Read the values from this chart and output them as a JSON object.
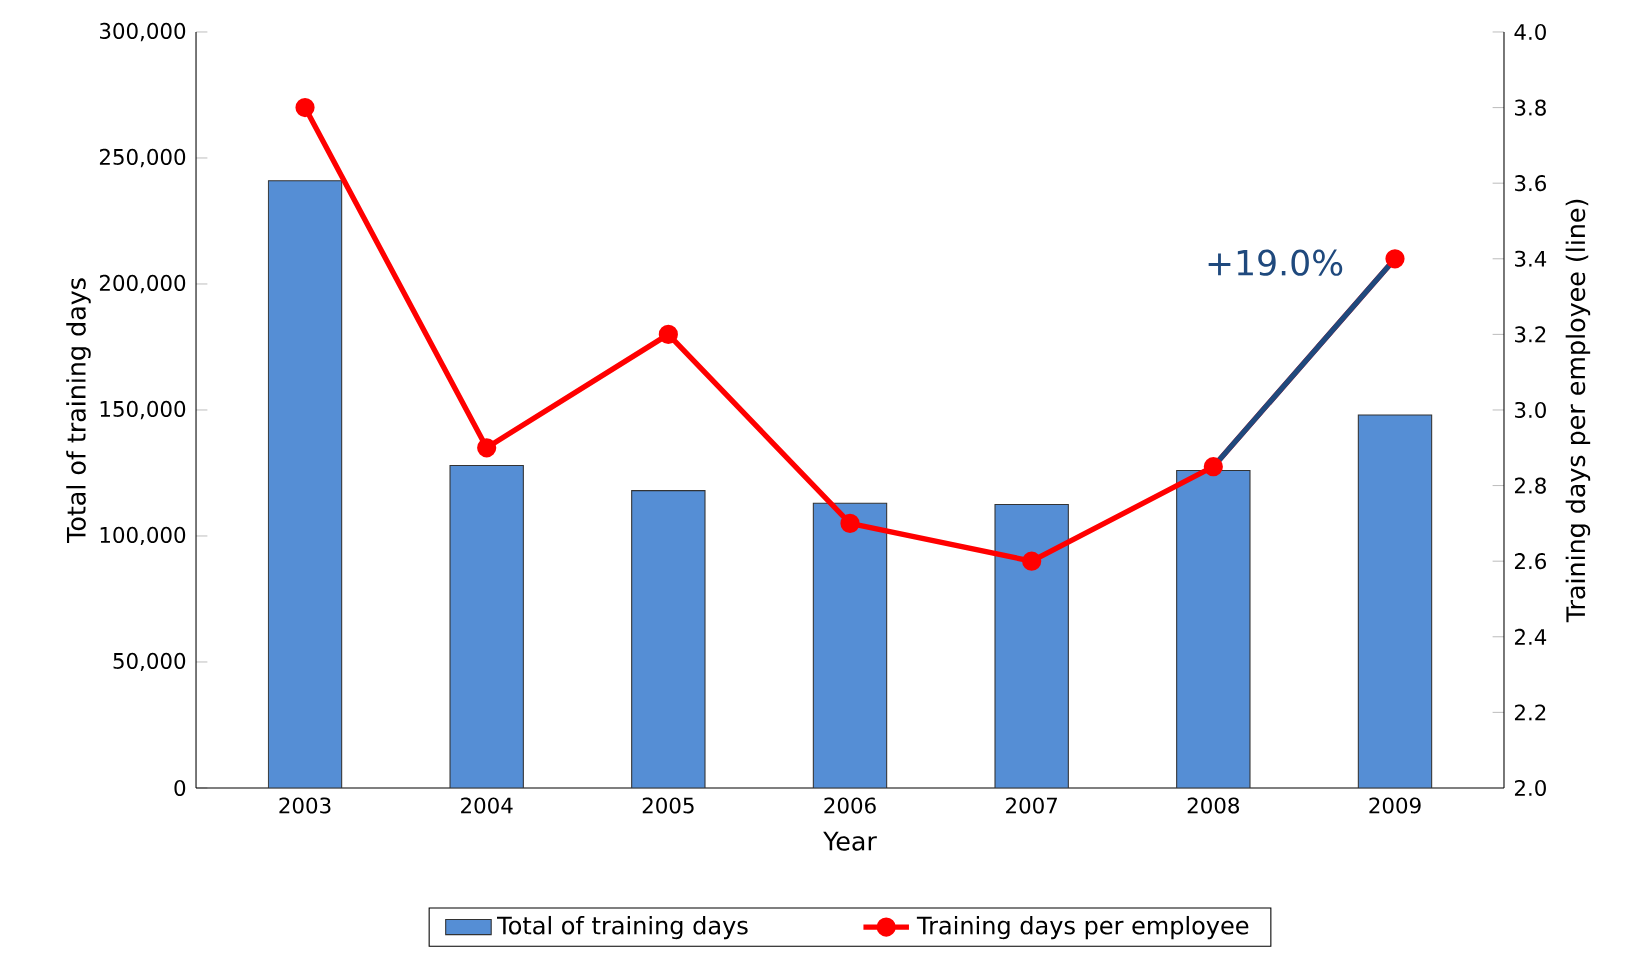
{
  "chart_data": {
    "type": "bar",
    "xlabel": "Year",
    "ylabel": "Total of training days",
    "y2label": "Training days per employee (line)",
    "categories": [
      "2003",
      "2004",
      "2005",
      "2006",
      "2007",
      "2008",
      "2009"
    ],
    "series": [
      {
        "name": "Total of training days",
        "color": "#558ed5",
        "values": [
          241000,
          128000,
          118000,
          113000,
          112500,
          126000,
          148000
        ]
      },
      {
        "name": "Training days per employee",
        "type": "line",
        "axis": "y2",
        "color": "#ff0000",
        "marker": "circle",
        "values": [
          3.8,
          2.9,
          3.2,
          2.7,
          2.6,
          2.85,
          3.4
        ]
      },
      {
        "type": "line",
        "axis": "y2",
        "color": "#1f497d",
        "marker": "none",
        "values": [
          null,
          null,
          null,
          null,
          null,
          2.85,
          3.4
        ]
      }
    ],
    "annotations": [
      "+19.0%"
    ],
    "ylim": [
      0,
      300000
    ],
    "yticks": [
      {
        "value": 0,
        "label": "0"
      },
      {
        "value": 50000,
        "label": "50,000"
      },
      {
        "value": 100000,
        "label": "100,000"
      },
      {
        "value": 150000,
        "label": "150,000"
      },
      {
        "value": 200000,
        "label": "200,000"
      },
      {
        "value": 250000,
        "label": "250,000"
      },
      {
        "value": 300000,
        "label": "300,000"
      }
    ],
    "y2lim": [
      2.0,
      4.0
    ],
    "y2ticks": [
      {
        "value": 2.0,
        "label": "2.0"
      },
      {
        "value": 2.2,
        "label": "2.2"
      },
      {
        "value": 2.4,
        "label": "2.4"
      },
      {
        "value": 2.6,
        "label": "2.6"
      },
      {
        "value": 2.8,
        "label": "2.8"
      },
      {
        "value": 3.0,
        "label": "3.0"
      },
      {
        "value": 3.2,
        "label": "3.2"
      },
      {
        "value": 3.4,
        "label": "3.4"
      },
      {
        "value": 3.6,
        "label": "3.6"
      },
      {
        "value": 3.8,
        "label": "3.8"
      },
      {
        "value": 4.0,
        "label": "4.0"
      }
    ],
    "legend": "bottom"
  }
}
